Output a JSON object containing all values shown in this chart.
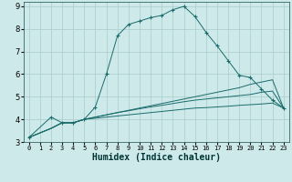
{
  "title": "",
  "xlabel": "Humidex (Indice chaleur)",
  "ylabel": "",
  "bg_color": "#cee9e9",
  "grid_color": "#aacccc",
  "line_color": "#1a6b6b",
  "xlim": [
    -0.5,
    23.5
  ],
  "ylim": [
    3,
    9.2
  ],
  "xticks": [
    0,
    1,
    2,
    3,
    4,
    5,
    6,
    7,
    8,
    9,
    10,
    11,
    12,
    13,
    14,
    15,
    16,
    17,
    18,
    19,
    20,
    21,
    22,
    23
  ],
  "yticks": [
    3,
    4,
    5,
    6,
    7,
    8,
    9
  ],
  "series": [
    {
      "x": [
        0,
        2,
        3,
        4,
        5,
        6,
        7,
        8,
        9,
        10,
        11,
        12,
        13,
        14,
        15,
        16,
        17,
        18,
        19,
        20,
        21,
        22,
        23
      ],
      "y": [
        3.2,
        4.1,
        3.85,
        3.85,
        4.0,
        4.55,
        6.0,
        7.7,
        8.2,
        8.35,
        8.5,
        8.6,
        8.85,
        9.0,
        8.55,
        7.85,
        7.25,
        6.6,
        5.95,
        5.85,
        5.35,
        4.85,
        4.5
      ],
      "marker": "+"
    },
    {
      "x": [
        0,
        2,
        3,
        4,
        5,
        6,
        7,
        8,
        9,
        10,
        11,
        12,
        13,
        14,
        15,
        16,
        17,
        18,
        19,
        20,
        21,
        22,
        23
      ],
      "y": [
        3.2,
        3.6,
        3.85,
        3.85,
        4.0,
        4.1,
        4.2,
        4.3,
        4.4,
        4.5,
        4.6,
        4.7,
        4.8,
        4.9,
        5.0,
        5.1,
        5.2,
        5.3,
        5.4,
        5.55,
        5.65,
        5.75,
        4.5
      ],
      "marker": null
    },
    {
      "x": [
        0,
        2,
        3,
        4,
        5,
        6,
        7,
        8,
        9,
        10,
        11,
        12,
        13,
        14,
        15,
        16,
        17,
        18,
        19,
        20,
        21,
        22,
        23
      ],
      "y": [
        3.2,
        3.6,
        3.85,
        3.85,
        4.0,
        4.1,
        4.2,
        4.3,
        4.38,
        4.47,
        4.55,
        4.62,
        4.7,
        4.78,
        4.85,
        4.9,
        4.95,
        5.0,
        5.05,
        5.1,
        5.2,
        5.25,
        4.5
      ],
      "marker": null
    },
    {
      "x": [
        0,
        2,
        3,
        4,
        5,
        6,
        7,
        8,
        9,
        10,
        11,
        12,
        13,
        14,
        15,
        16,
        17,
        18,
        19,
        20,
        21,
        22,
        23
      ],
      "y": [
        3.2,
        3.6,
        3.85,
        3.85,
        4.0,
        4.05,
        4.1,
        4.15,
        4.2,
        4.25,
        4.3,
        4.35,
        4.4,
        4.45,
        4.5,
        4.52,
        4.55,
        4.58,
        4.62,
        4.65,
        4.68,
        4.72,
        4.5
      ],
      "marker": null
    }
  ]
}
